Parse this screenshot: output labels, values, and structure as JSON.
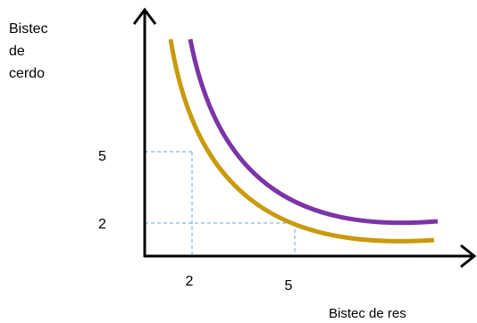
{
  "diagram": {
    "y_axis_label": [
      "Bistec",
      "de",
      "cerdo"
    ],
    "x_axis_label": "Bistec de res",
    "y_ticks": [
      {
        "label": "5",
        "value": 5
      },
      {
        "label": "2",
        "value": 2
      }
    ],
    "x_ticks": [
      {
        "label": "2",
        "value": 2
      },
      {
        "label": "5",
        "value": 5
      }
    ],
    "curves": [
      {
        "id": "curve-lower",
        "color": "#c99a0b"
      },
      {
        "id": "curve-upper",
        "color": "#7b35a6"
      }
    ],
    "guide_color": "#6aa7d3",
    "axis_color": "#000000"
  }
}
